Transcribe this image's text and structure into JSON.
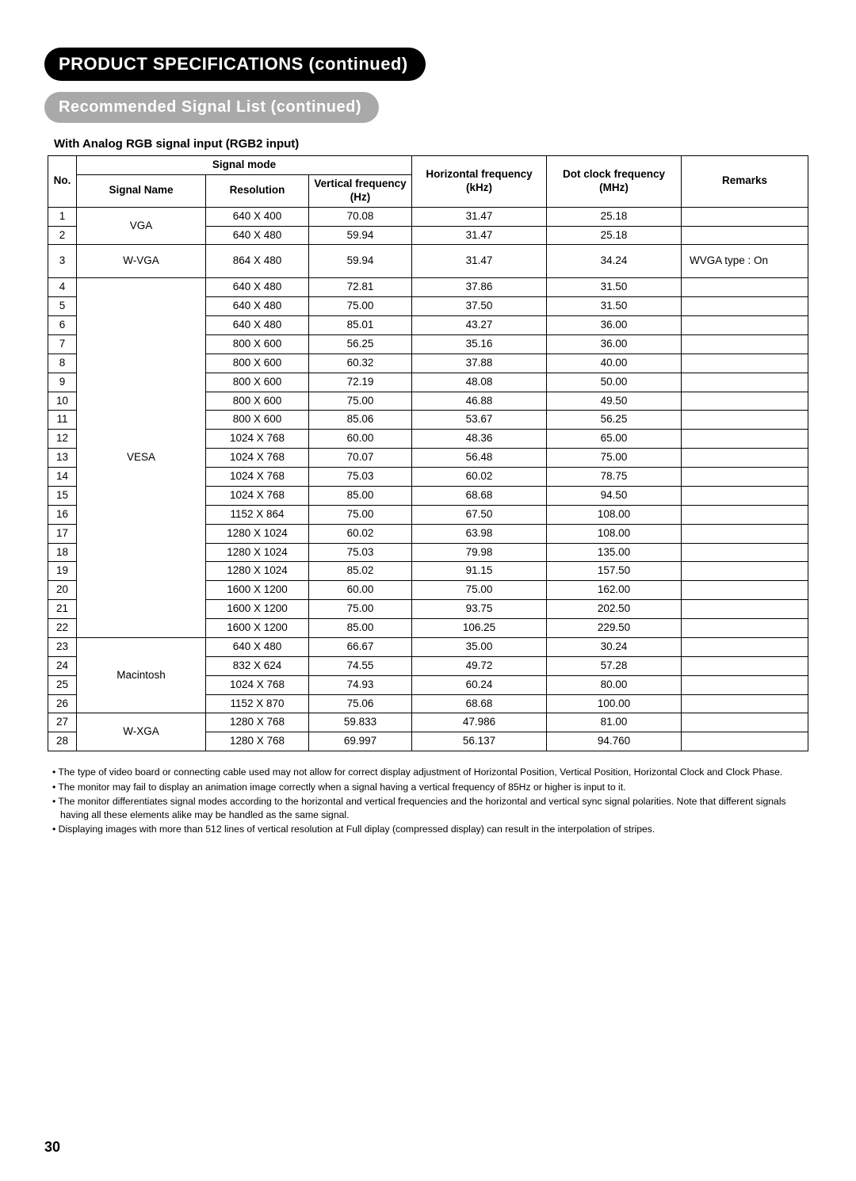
{
  "titles": {
    "main": "PRODUCT SPECIFICATIONS (continued)",
    "section": "Recommended Signal List (continued)",
    "subhead": "With Analog RGB signal input (RGB2 input)"
  },
  "headers": {
    "no": "No.",
    "signal_mode": "Signal mode",
    "signal_name": "Signal Name",
    "resolution": "Resolution",
    "vertical": "Vertical frequency (Hz)",
    "horizontal": "Horizontal frequency (kHz)",
    "dotclock": "Dot clock frequency (MHz)",
    "remarks": "Remarks"
  },
  "groups": [
    {
      "name": "VGA",
      "start": 1,
      "rows": [
        {
          "no": "1",
          "res": "640 X 400",
          "vf": "70.08",
          "hf": "31.47",
          "dc": "25.18",
          "rem": ""
        },
        {
          "no": "2",
          "res": "640 X 480",
          "vf": "59.94",
          "hf": "31.47",
          "dc": "25.18",
          "rem": ""
        }
      ]
    },
    {
      "name": "W-VGA",
      "start": 3,
      "tall": true,
      "rows": [
        {
          "no": "3",
          "res": "864 X 480",
          "vf": "59.94",
          "hf": "31.47",
          "dc": "34.24",
          "rem": "WVGA type : On"
        }
      ]
    },
    {
      "name": "VESA",
      "start": 4,
      "rows": [
        {
          "no": "4",
          "res": "640 X 480",
          "vf": "72.81",
          "hf": "37.86",
          "dc": "31.50",
          "rem": ""
        },
        {
          "no": "5",
          "res": "640 X 480",
          "vf": "75.00",
          "hf": "37.50",
          "dc": "31.50",
          "rem": ""
        },
        {
          "no": "6",
          "res": "640 X 480",
          "vf": "85.01",
          "hf": "43.27",
          "dc": "36.00",
          "rem": ""
        },
        {
          "no": "7",
          "res": "800 X 600",
          "vf": "56.25",
          "hf": "35.16",
          "dc": "36.00",
          "rem": ""
        },
        {
          "no": "8",
          "res": "800 X 600",
          "vf": "60.32",
          "hf": "37.88",
          "dc": "40.00",
          "rem": ""
        },
        {
          "no": "9",
          "res": "800 X 600",
          "vf": "72.19",
          "hf": "48.08",
          "dc": "50.00",
          "rem": ""
        },
        {
          "no": "10",
          "res": "800 X 600",
          "vf": "75.00",
          "hf": "46.88",
          "dc": "49.50",
          "rem": ""
        },
        {
          "no": "11",
          "res": "800 X 600",
          "vf": "85.06",
          "hf": "53.67",
          "dc": "56.25",
          "rem": ""
        },
        {
          "no": "12",
          "res": "1024 X 768",
          "vf": "60.00",
          "hf": "48.36",
          "dc": "65.00",
          "rem": ""
        },
        {
          "no": "13",
          "res": "1024 X 768",
          "vf": "70.07",
          "hf": "56.48",
          "dc": "75.00",
          "rem": ""
        },
        {
          "no": "14",
          "res": "1024 X 768",
          "vf": "75.03",
          "hf": "60.02",
          "dc": "78.75",
          "rem": ""
        },
        {
          "no": "15",
          "res": "1024 X 768",
          "vf": "85.00",
          "hf": "68.68",
          "dc": "94.50",
          "rem": ""
        },
        {
          "no": "16",
          "res": "1152 X 864",
          "vf": "75.00",
          "hf": "67.50",
          "dc": "108.00",
          "rem": ""
        },
        {
          "no": "17",
          "res": "1280 X 1024",
          "vf": "60.02",
          "hf": "63.98",
          "dc": "108.00",
          "rem": ""
        },
        {
          "no": "18",
          "res": "1280 X 1024",
          "vf": "75.03",
          "hf": "79.98",
          "dc": "135.00",
          "rem": ""
        },
        {
          "no": "19",
          "res": "1280 X 1024",
          "vf": "85.02",
          "hf": "91.15",
          "dc": "157.50",
          "rem": ""
        },
        {
          "no": "20",
          "res": "1600 X 1200",
          "vf": "60.00",
          "hf": "75.00",
          "dc": "162.00",
          "rem": ""
        },
        {
          "no": "21",
          "res": "1600 X 1200",
          "vf": "75.00",
          "hf": "93.75",
          "dc": "202.50",
          "rem": ""
        },
        {
          "no": "22",
          "res": "1600 X 1200",
          "vf": "85.00",
          "hf": "106.25",
          "dc": "229.50",
          "rem": ""
        }
      ]
    },
    {
      "name": "Macintosh",
      "start": 23,
      "rows": [
        {
          "no": "23",
          "res": "640 X 480",
          "vf": "66.67",
          "hf": "35.00",
          "dc": "30.24",
          "rem": ""
        },
        {
          "no": "24",
          "res": "832 X 624",
          "vf": "74.55",
          "hf": "49.72",
          "dc": "57.28",
          "rem": ""
        },
        {
          "no": "25",
          "res": "1024 X 768",
          "vf": "74.93",
          "hf": "60.24",
          "dc": "80.00",
          "rem": ""
        },
        {
          "no": "26",
          "res": "1152 X 870",
          "vf": "75.06",
          "hf": "68.68",
          "dc": "100.00",
          "rem": ""
        }
      ]
    },
    {
      "name": "W-XGA",
      "start": 27,
      "rows": [
        {
          "no": "27",
          "res": "1280 X 768",
          "vf": "59.833",
          "hf": "47.986",
          "dc": "81.00",
          "rem": ""
        },
        {
          "no": "28",
          "res": "1280 X 768",
          "vf": "69.997",
          "hf": "56.137",
          "dc": "94.760",
          "rem": ""
        }
      ]
    }
  ],
  "notes": [
    "• The type of video board or connecting cable used may not allow for correct display adjustment of Horizontal Position, Vertical Position, Horizontal Clock and Clock Phase.",
    "• The monitor may fail to display an animation image correctly when a signal having a vertical frequency of 85Hz or higher is input to it.",
    "• The monitor differentiates signal modes according to the horizontal and vertical frequencies and the horizontal and vertical sync signal polarities.  Note that different signals having all these elements alike may be handled as the same signal.",
    "• Displaying images with more than 512 lines of vertical resolution at Full diplay (compressed display) can result in the interpolation of stripes."
  ],
  "page_number": "30"
}
